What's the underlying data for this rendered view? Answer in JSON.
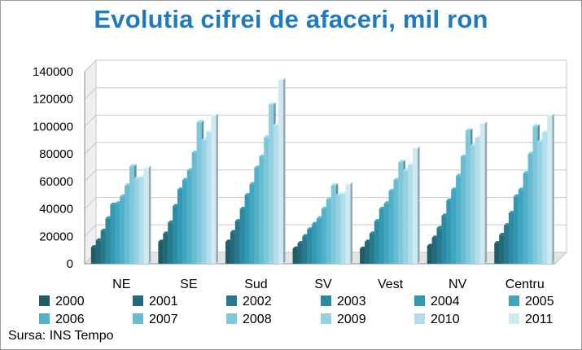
{
  "chart_data": {
    "type": "bar",
    "title": "Evolutia cifrei de afaceri, mil ron",
    "categories": [
      "NE",
      "SE",
      "Sud",
      "SV",
      "Vest",
      "NV",
      "Centru"
    ],
    "ylim": [
      0,
      140000
    ],
    "yticks": [
      0,
      20000,
      40000,
      60000,
      80000,
      100000,
      120000,
      140000
    ],
    "ytick_labels": [
      "0",
      "20000",
      "40000",
      "60000",
      "80000",
      "100000",
      "120000",
      "140000"
    ],
    "grid": true,
    "legend_position": "bottom",
    "series": [
      {
        "name": "2000",
        "color": "#1f5c66",
        "values": [
          12000,
          16000,
          16000,
          11000,
          11000,
          13000,
          15000
        ]
      },
      {
        "name": "2001",
        "color": "#23697a",
        "values": [
          17000,
          22000,
          23000,
          15000,
          16000,
          19000,
          21000
        ]
      },
      {
        "name": "2002",
        "color": "#277a8e",
        "values": [
          24000,
          30000,
          31000,
          20000,
          22000,
          26000,
          28000
        ]
      },
      {
        "name": "2003",
        "color": "#2c8ba2",
        "values": [
          33000,
          42000,
          40000,
          25000,
          31000,
          35000,
          37000
        ]
      },
      {
        "name": "2004",
        "color": "#3399b3",
        "values": [
          43000,
          54000,
          50000,
          29000,
          40000,
          46000,
          49000
        ]
      },
      {
        "name": "2005",
        "color": "#40a6c0",
        "values": [
          44000,
          61000,
          58000,
          33000,
          44000,
          54000,
          54000
        ]
      },
      {
        "name": "2006",
        "color": "#52b1c9",
        "values": [
          49000,
          68000,
          70000,
          40000,
          53000,
          64000,
          66000
        ]
      },
      {
        "name": "2007",
        "color": "#67bcd2",
        "values": [
          57000,
          81000,
          78000,
          47000,
          61000,
          78000,
          80000
        ]
      },
      {
        "name": "2008",
        "color": "#7fc7da",
        "values": [
          71000,
          103000,
          92000,
          57000,
          74000,
          97000,
          100000
        ]
      },
      {
        "name": "2009",
        "color": "#97d1e1",
        "values": [
          62000,
          90000,
          116000,
          50000,
          68000,
          86000,
          89000
        ]
      },
      {
        "name": "2010",
        "color": "#b2dde9",
        "values": [
          63000,
          96000,
          101000,
          51000,
          72000,
          92000,
          96000
        ]
      },
      {
        "name": "2011",
        "color": "#cfe9f1",
        "values": [
          70000,
          108000,
          134000,
          58000,
          84000,
          102000,
          108000
        ]
      }
    ]
  },
  "footer": {
    "source": "Sursa: INS Tempo"
  }
}
